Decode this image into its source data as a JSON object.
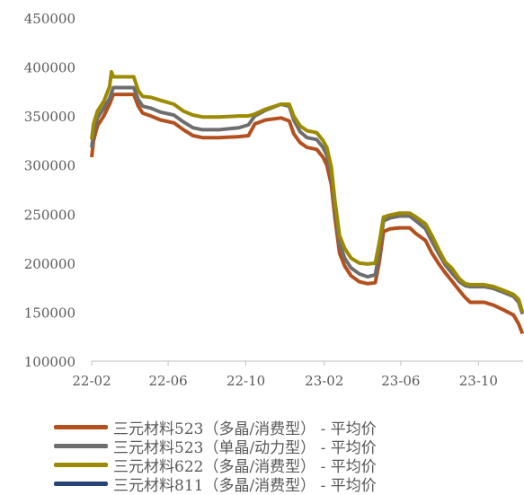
{
  "chart_data": {
    "type": "line",
    "title": "",
    "xlabel": "",
    "ylabel": "",
    "ylim": [
      100000,
      450000
    ],
    "y_ticks": [
      "100000",
      "150000",
      "200000",
      "250000",
      "300000",
      "350000",
      "400000",
      "450000"
    ],
    "y_tick_values": [
      100000,
      150000,
      200000,
      250000,
      300000,
      350000,
      400000,
      450000
    ],
    "x_ticks": [
      "22-02",
      "22-06",
      "22-10",
      "23-02",
      "23-06",
      "23-10"
    ],
    "x_tick_values": [
      "2022-02-01",
      "2022-06-01",
      "2022-10-01",
      "2023-02-01",
      "2023-06-01",
      "2023-10-01"
    ],
    "xlim": [
      "2022-02-01",
      "2023-12-10"
    ],
    "grid": false,
    "legend_position": "bottom",
    "series": [
      {
        "name": "三元材料523（多晶/消费型） - 平均价",
        "color": "#B4501E",
        "points": [
          [
            "2022-02-01",
            308000
          ],
          [
            "2022-02-04",
            325000
          ],
          [
            "2022-02-10",
            340000
          ],
          [
            "2022-02-20",
            350000
          ],
          [
            "2022-03-01",
            362000
          ],
          [
            "2022-03-07",
            372000
          ],
          [
            "2022-03-20",
            372000
          ],
          [
            "2022-04-08",
            372000
          ],
          [
            "2022-04-15",
            360000
          ],
          [
            "2022-04-22",
            353000
          ],
          [
            "2022-05-05",
            350000
          ],
          [
            "2022-05-20",
            346000
          ],
          [
            "2022-06-10",
            343000
          ],
          [
            "2022-06-25",
            336000
          ],
          [
            "2022-07-10",
            330000
          ],
          [
            "2022-07-25",
            328000
          ],
          [
            "2022-08-20",
            328000
          ],
          [
            "2022-09-20",
            329000
          ],
          [
            "2022-10-05",
            330000
          ],
          [
            "2022-10-15",
            342000
          ],
          [
            "2022-11-01",
            346000
          ],
          [
            "2022-11-25",
            348000
          ],
          [
            "2022-12-08",
            345000
          ],
          [
            "2022-12-15",
            332000
          ],
          [
            "2022-12-25",
            323000
          ],
          [
            "2023-01-05",
            318000
          ],
          [
            "2023-01-20",
            316000
          ],
          [
            "2023-01-30",
            308000
          ],
          [
            "2023-02-05",
            300000
          ],
          [
            "2023-02-12",
            280000
          ],
          [
            "2023-02-18",
            245000
          ],
          [
            "2023-02-25",
            210000
          ],
          [
            "2023-03-05",
            197000
          ],
          [
            "2023-03-15",
            187000
          ],
          [
            "2023-03-28",
            181000
          ],
          [
            "2023-04-10",
            179000
          ],
          [
            "2023-04-22",
            180000
          ],
          [
            "2023-04-28",
            200000
          ],
          [
            "2023-05-05",
            232000
          ],
          [
            "2023-05-15",
            235000
          ],
          [
            "2023-05-30",
            236000
          ],
          [
            "2023-06-15",
            236000
          ],
          [
            "2023-06-25",
            230000
          ],
          [
            "2023-07-10",
            223000
          ],
          [
            "2023-07-20",
            210000
          ],
          [
            "2023-08-01",
            198000
          ],
          [
            "2023-08-10",
            190000
          ],
          [
            "2023-08-20",
            182000
          ],
          [
            "2023-09-01",
            172000
          ],
          [
            "2023-09-10",
            165000
          ],
          [
            "2023-09-18",
            160000
          ],
          [
            "2023-10-10",
            160000
          ],
          [
            "2023-10-25",
            157000
          ],
          [
            "2023-11-10",
            152000
          ],
          [
            "2023-11-25",
            147000
          ],
          [
            "2023-12-03",
            138000
          ],
          [
            "2023-12-09",
            128000
          ]
        ]
      },
      {
        "name": "三元材料523（单晶/动力型） - 平均价",
        "color": "#6E6E6E",
        "points": [
          [
            "2022-02-01",
            318000
          ],
          [
            "2022-02-04",
            333000
          ],
          [
            "2022-02-10",
            348000
          ],
          [
            "2022-02-20",
            358000
          ],
          [
            "2022-03-01",
            368000
          ],
          [
            "2022-03-07",
            379000
          ],
          [
            "2022-03-20",
            379000
          ],
          [
            "2022-04-08",
            379000
          ],
          [
            "2022-04-15",
            367000
          ],
          [
            "2022-04-22",
            360000
          ],
          [
            "2022-05-05",
            358000
          ],
          [
            "2022-05-20",
            354000
          ],
          [
            "2022-06-10",
            351000
          ],
          [
            "2022-06-25",
            344000
          ],
          [
            "2022-07-10",
            338000
          ],
          [
            "2022-07-25",
            336000
          ],
          [
            "2022-08-20",
            336000
          ],
          [
            "2022-09-20",
            338000
          ],
          [
            "2022-10-05",
            341000
          ],
          [
            "2022-10-15",
            350000
          ],
          [
            "2022-11-01",
            356000
          ],
          [
            "2022-11-25",
            362000
          ],
          [
            "2022-12-08",
            360000
          ],
          [
            "2022-12-15",
            346000
          ],
          [
            "2022-12-25",
            334000
          ],
          [
            "2023-01-05",
            328000
          ],
          [
            "2023-01-20",
            326000
          ],
          [
            "2023-01-30",
            318000
          ],
          [
            "2023-02-05",
            310000
          ],
          [
            "2023-02-12",
            290000
          ],
          [
            "2023-02-18",
            255000
          ],
          [
            "2023-02-25",
            220000
          ],
          [
            "2023-03-05",
            205000
          ],
          [
            "2023-03-15",
            195000
          ],
          [
            "2023-03-28",
            189000
          ],
          [
            "2023-04-10",
            186000
          ],
          [
            "2023-04-22",
            188000
          ],
          [
            "2023-04-28",
            210000
          ],
          [
            "2023-05-05",
            243000
          ],
          [
            "2023-05-15",
            246000
          ],
          [
            "2023-05-30",
            248000
          ],
          [
            "2023-06-15",
            248000
          ],
          [
            "2023-06-25",
            243000
          ],
          [
            "2023-07-10",
            235000
          ],
          [
            "2023-07-20",
            222000
          ],
          [
            "2023-08-01",
            208000
          ],
          [
            "2023-08-10",
            198000
          ],
          [
            "2023-08-20",
            190000
          ],
          [
            "2023-09-01",
            181000
          ],
          [
            "2023-09-10",
            177000
          ],
          [
            "2023-09-18",
            176000
          ],
          [
            "2023-10-10",
            176000
          ],
          [
            "2023-10-25",
            174000
          ],
          [
            "2023-11-10",
            170000
          ],
          [
            "2023-11-25",
            166000
          ],
          [
            "2023-12-03",
            160000
          ],
          [
            "2023-12-09",
            148000
          ]
        ]
      },
      {
        "name": "三元材料622（多晶/消费型） - 平均价",
        "color": "#9C8A00",
        "points": [
          [
            "2022-02-01",
            326000
          ],
          [
            "2022-02-04",
            342000
          ],
          [
            "2022-02-10",
            355000
          ],
          [
            "2022-02-20",
            365000
          ],
          [
            "2022-03-01",
            380000
          ],
          [
            "2022-03-04",
            395000
          ],
          [
            "2022-03-07",
            390000
          ],
          [
            "2022-03-20",
            390000
          ],
          [
            "2022-04-08",
            390000
          ],
          [
            "2022-04-15",
            376000
          ],
          [
            "2022-04-22",
            370000
          ],
          [
            "2022-05-05",
            369000
          ],
          [
            "2022-05-20",
            366000
          ],
          [
            "2022-06-10",
            362000
          ],
          [
            "2022-06-25",
            355000
          ],
          [
            "2022-07-10",
            351000
          ],
          [
            "2022-07-25",
            349000
          ],
          [
            "2022-08-20",
            349000
          ],
          [
            "2022-09-20",
            350000
          ],
          [
            "2022-10-05",
            350000
          ],
          [
            "2022-10-15",
            352000
          ],
          [
            "2022-11-01",
            357000
          ],
          [
            "2022-11-25",
            362000
          ],
          [
            "2022-12-08",
            362000
          ],
          [
            "2022-12-15",
            350000
          ],
          [
            "2022-12-25",
            340000
          ],
          [
            "2023-01-05",
            335000
          ],
          [
            "2023-01-20",
            333000
          ],
          [
            "2023-01-30",
            325000
          ],
          [
            "2023-02-05",
            318000
          ],
          [
            "2023-02-12",
            298000
          ],
          [
            "2023-02-18",
            262000
          ],
          [
            "2023-02-25",
            228000
          ],
          [
            "2023-03-05",
            215000
          ],
          [
            "2023-03-15",
            205000
          ],
          [
            "2023-03-28",
            200000
          ],
          [
            "2023-04-10",
            199000
          ],
          [
            "2023-04-22",
            200000
          ],
          [
            "2023-04-28",
            220000
          ],
          [
            "2023-05-05",
            247000
          ],
          [
            "2023-05-15",
            249000
          ],
          [
            "2023-05-30",
            251000
          ],
          [
            "2023-06-15",
            251000
          ],
          [
            "2023-06-25",
            247000
          ],
          [
            "2023-07-10",
            240000
          ],
          [
            "2023-07-20",
            228000
          ],
          [
            "2023-08-01",
            212000
          ],
          [
            "2023-08-10",
            201000
          ],
          [
            "2023-08-20",
            195000
          ],
          [
            "2023-09-01",
            184000
          ],
          [
            "2023-09-10",
            179000
          ],
          [
            "2023-09-18",
            178000
          ],
          [
            "2023-10-10",
            178000
          ],
          [
            "2023-10-25",
            176000
          ],
          [
            "2023-11-10",
            172000
          ],
          [
            "2023-11-25",
            168000
          ],
          [
            "2023-12-03",
            163000
          ],
          [
            "2023-12-09",
            150000
          ]
        ]
      },
      {
        "name": "三元材料811（多晶/消费型） - 平均价",
        "color": "#264478",
        "points": []
      }
    ]
  }
}
